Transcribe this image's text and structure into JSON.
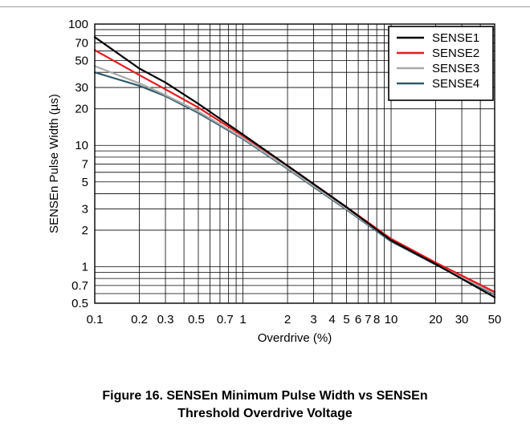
{
  "caption": {
    "line1": "Figure 16. SENSEn Minimum Pulse Width vs SENSEn",
    "line2": "Threshold Overdrive Voltage"
  },
  "chart_data": {
    "type": "line",
    "xlabel": "Overdrive (%)",
    "ylabel": "SENSEn Pulse Width (µs)",
    "x_scale": "log",
    "y_scale": "log",
    "xlim": [
      0.1,
      50
    ],
    "ylim": [
      0.5,
      100
    ],
    "grid": true,
    "legend_position": "top-right",
    "x_ticks": [
      {
        "value": 0.1,
        "label": "0.1"
      },
      {
        "value": 0.2,
        "label": "0.2"
      },
      {
        "value": 0.3,
        "label": "0.3"
      },
      {
        "value": 0.5,
        "label": "0.5"
      },
      {
        "value": 0.7,
        "label": "0.7"
      },
      {
        "value": 1,
        "label": "1"
      },
      {
        "value": 2,
        "label": "2"
      },
      {
        "value": 3,
        "label": "3"
      },
      {
        "value": 4,
        "label": "4"
      },
      {
        "value": 5,
        "label": "5"
      },
      {
        "value": 6,
        "label": "6"
      },
      {
        "value": 7,
        "label": "7"
      },
      {
        "value": 8,
        "label": "8"
      },
      {
        "value": 10,
        "label": "10"
      },
      {
        "value": 20,
        "label": "20"
      },
      {
        "value": 30,
        "label": "30"
      },
      {
        "value": 50,
        "label": "50"
      }
    ],
    "y_ticks": [
      {
        "value": 0.5,
        "label": "0.5"
      },
      {
        "value": 0.7,
        "label": "0.7"
      },
      {
        "value": 1,
        "label": "1"
      },
      {
        "value": 2,
        "label": "2"
      },
      {
        "value": 3,
        "label": "3"
      },
      {
        "value": 5,
        "label": "5"
      },
      {
        "value": 7,
        "label": "7"
      },
      {
        "value": 10,
        "label": "10"
      },
      {
        "value": 20,
        "label": "20"
      },
      {
        "value": 30,
        "label": "30"
      },
      {
        "value": 50,
        "label": "50"
      },
      {
        "value": 70,
        "label": "70"
      },
      {
        "value": 100,
        "label": "100"
      }
    ],
    "series": [
      {
        "name": "SENSE1",
        "color": "#000000",
        "x": [
          0.1,
          0.2,
          0.3,
          0.5,
          1,
          2,
          5,
          10,
          20,
          50
        ],
        "y": [
          78,
          43,
          33,
          22,
          12.3,
          6.8,
          3.1,
          1.65,
          1.05,
          0.56
        ]
      },
      {
        "name": "SENSE2",
        "color": "#e8191e",
        "x": [
          0.1,
          0.2,
          0.3,
          0.5,
          1,
          2,
          5,
          10,
          20,
          50
        ],
        "y": [
          61,
          38,
          29,
          20.5,
          12,
          6.8,
          3.1,
          1.7,
          1.08,
          0.62
        ]
      },
      {
        "name": "SENSE3",
        "color": "#a8a8a8",
        "x": [
          0.1,
          0.2,
          0.3,
          0.5,
          1,
          2,
          5,
          10,
          20,
          50
        ],
        "y": [
          45,
          32.5,
          26,
          19,
          11.5,
          6.5,
          3.0,
          1.65,
          1.05,
          0.6
        ]
      },
      {
        "name": "SENSE4",
        "color": "#2f5b6b",
        "x": [
          0.1,
          0.2,
          0.3,
          0.5,
          1,
          2,
          5,
          10,
          20,
          50
        ],
        "y": [
          40,
          31,
          25.5,
          18.5,
          11.3,
          6.4,
          2.95,
          1.62,
          1.04,
          0.59
        ]
      }
    ]
  }
}
